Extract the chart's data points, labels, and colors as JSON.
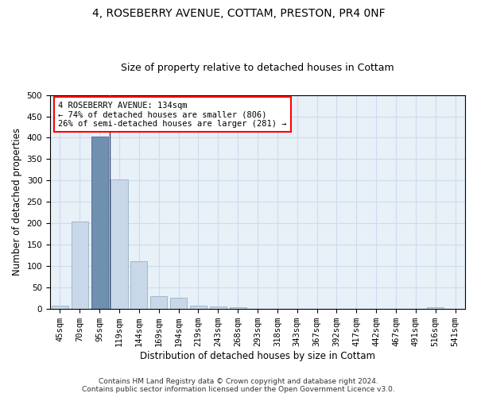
{
  "title_line1": "4, ROSEBERRY AVENUE, COTTAM, PRESTON, PR4 0NF",
  "title_line2": "Size of property relative to detached houses in Cottam",
  "xlabel": "Distribution of detached houses by size in Cottam",
  "ylabel": "Number of detached properties",
  "categories": [
    "45sqm",
    "70sqm",
    "95sqm",
    "119sqm",
    "144sqm",
    "169sqm",
    "194sqm",
    "219sqm",
    "243sqm",
    "268sqm",
    "293sqm",
    "318sqm",
    "343sqm",
    "367sqm",
    "392sqm",
    "417sqm",
    "442sqm",
    "467sqm",
    "491sqm",
    "516sqm",
    "541sqm"
  ],
  "values": [
    8,
    205,
    403,
    303,
    112,
    30,
    27,
    7,
    6,
    5,
    0,
    0,
    0,
    0,
    0,
    0,
    0,
    0,
    0,
    4,
    0
  ],
  "bar_color": "#c8d8e8",
  "bar_edge_color": "#a0b8cc",
  "highlight_bar_index": 2,
  "highlight_color": "#7090b0",
  "highlight_edge_color": "#5070a0",
  "annotation_text_line1": "4 ROSEBERRY AVENUE: 134sqm",
  "annotation_text_line2": "← 74% of detached houses are smaller (806)",
  "annotation_text_line3": "26% of semi-detached houses are larger (281) →",
  "annotation_box_color": "white",
  "annotation_box_edge_color": "red",
  "vline_x": 2.5,
  "ylim": [
    0,
    500
  ],
  "yticks": [
    0,
    50,
    100,
    150,
    200,
    250,
    300,
    350,
    400,
    450,
    500
  ],
  "grid_color": "#ccddee",
  "bg_color": "#e8f0f8",
  "footer_line1": "Contains HM Land Registry data © Crown copyright and database right 2024.",
  "footer_line2": "Contains public sector information licensed under the Open Government Licence v3.0.",
  "title_fontsize": 10,
  "subtitle_fontsize": 9,
  "axis_label_fontsize": 8.5,
  "tick_fontsize": 7.5,
  "annotation_fontsize": 7.5,
  "footer_fontsize": 6.5
}
